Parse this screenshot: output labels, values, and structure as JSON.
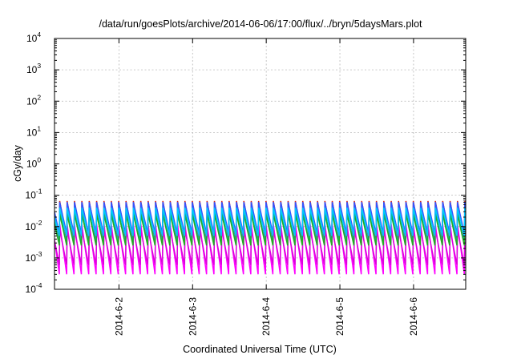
{
  "chart_data": {
    "type": "line",
    "title": "/data/run/goesPlots/archive/2014-06-06/17:00/flux/../bryn/5daysMars.plot",
    "xlabel": "Coordinated Universal Time (UTC)",
    "ylabel": "cGy/day",
    "yscale": "log",
    "ylim": [
      0.0001,
      10000
    ],
    "xlim": [
      "2014-06-01T03:00",
      "2014-06-06T17:00"
    ],
    "x_ticks": [
      "2014-6-2",
      "2014-6-3",
      "2014-6-4",
      "2014-6-5",
      "2014-6-6"
    ],
    "y_ticks": [
      {
        "value": 0.0001,
        "base": "10",
        "exp": "-4"
      },
      {
        "value": 0.001,
        "base": "10",
        "exp": "-3"
      },
      {
        "value": 0.01,
        "base": "10",
        "exp": "-2"
      },
      {
        "value": 0.1,
        "base": "10",
        "exp": "-1"
      },
      {
        "value": 1,
        "base": "10",
        "exp": "0"
      },
      {
        "value": 10,
        "base": "10",
        "exp": "1"
      },
      {
        "value": 100,
        "base": "10",
        "exp": "2"
      },
      {
        "value": 1000,
        "base": "10",
        "exp": "3"
      },
      {
        "value": 10000,
        "base": "10",
        "exp": "4"
      }
    ],
    "grid": true,
    "period_hours": 2.4,
    "series": [
      {
        "color": "#cc2222",
        "peak": 0.065,
        "trough": 0.004
      },
      {
        "color": "#ff00ff",
        "peak": 0.012,
        "trough": 0.0003
      },
      {
        "color": "#dd00dd",
        "peak": 0.008,
        "trough": 0.0006
      },
      {
        "color": "#00bcbc",
        "peak": 0.03,
        "trough": 0.003
      },
      {
        "color": "#22aa22",
        "peak": 0.025,
        "trough": 0.0025
      },
      {
        "color": "#3355ff",
        "peak": 0.06,
        "trough": 0.006
      },
      {
        "color": "#00c8ff",
        "peak": 0.04,
        "trough": 0.005
      }
    ]
  }
}
